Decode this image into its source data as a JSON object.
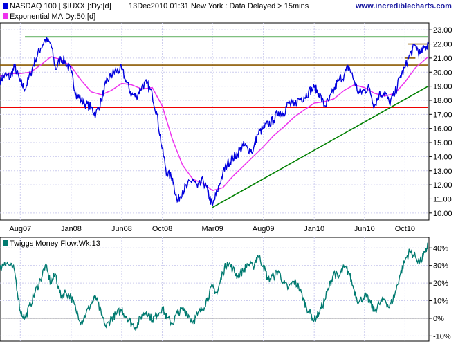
{
  "header": {
    "symbol_legend": "NASDAQ 100 [ $IUXX ]:Dy:[d]",
    "timestamp": "13Dec2010 01:31 New York : Data Delayed > 15mins",
    "ma_legend": "Exponential MA:Dy:50:[d]",
    "watermark": "www.incrediblecharts.com"
  },
  "indicator": {
    "legend": "Twiggs Money Flow:Wk:13"
  },
  "colors": {
    "price": "#0000dd",
    "ma": "#ee33ee",
    "resistance": "#008000",
    "support_mid": "#8b5a00",
    "support_low": "#ee0000",
    "trendline": "#008000",
    "money_flow": "#007a70",
    "grid": "#ccccee"
  },
  "chart_data": [
    {
      "type": "line",
      "title": "NASDAQ 100 [ $IUXX ]:Dy:[d]",
      "x_ticks": [
        "Aug07",
        "Jan08",
        "Jun08",
        "Oct08",
        "Mar09",
        "Aug09",
        "Jan10",
        "Jun10",
        "Oct10"
      ],
      "y_ticks": [
        "10.00",
        "11.00",
        "12.00",
        "13.00",
        "14.00",
        "15.00",
        "16.00",
        "17.00",
        "18.00",
        "19.00",
        "20.00",
        "21.00",
        "22.00",
        "23.00"
      ],
      "ylim": [
        9.5,
        23.5
      ],
      "grid": true,
      "series": [
        {
          "name": "NASDAQ 100 [ $IUXX ]:Dy:[d]",
          "values": [
            [
              "2007-06-01",
              19.4
            ],
            [
              "2007-06-15",
              19.8
            ],
            [
              "2007-07-01",
              19.6
            ],
            [
              "2007-07-15",
              20.4
            ],
            [
              "2007-08-01",
              19.3
            ],
            [
              "2007-08-15",
              18.8
            ],
            [
              "2007-09-01",
              19.9
            ],
            [
              "2007-09-15",
              20.9
            ],
            [
              "2007-10-01",
              21.7
            ],
            [
              "2007-10-15",
              22.3
            ],
            [
              "2007-11-01",
              22.0
            ],
            [
              "2007-11-15",
              20.2
            ],
            [
              "2007-12-01",
              21.0
            ],
            [
              "2007-12-15",
              20.7
            ],
            [
              "2008-01-01",
              20.0
            ],
            [
              "2008-01-15",
              18.5
            ],
            [
              "2008-02-01",
              18.0
            ],
            [
              "2008-02-15",
              17.7
            ],
            [
              "2008-03-01",
              17.5
            ],
            [
              "2008-03-15",
              17.0
            ],
            [
              "2008-04-01",
              18.0
            ],
            [
              "2008-04-15",
              19.2
            ],
            [
              "2008-05-01",
              19.8
            ],
            [
              "2008-05-15",
              20.1
            ],
            [
              "2008-06-01",
              20.2
            ],
            [
              "2008-06-15",
              19.3
            ],
            [
              "2008-07-01",
              18.4
            ],
            [
              "2008-07-15",
              18.3
            ],
            [
              "2008-08-01",
              19.0
            ],
            [
              "2008-08-15",
              19.2
            ],
            [
              "2008-09-01",
              18.4
            ],
            [
              "2008-09-15",
              17.0
            ],
            [
              "2008-10-01",
              14.5
            ],
            [
              "2008-10-15",
              12.8
            ],
            [
              "2008-11-01",
              12.5
            ],
            [
              "2008-11-15",
              10.8
            ],
            [
              "2008-12-01",
              11.6
            ],
            [
              "2008-12-15",
              11.9
            ],
            [
              "2009-01-01",
              12.4
            ],
            [
              "2009-01-15",
              11.8
            ],
            [
              "2009-02-01",
              12.3
            ],
            [
              "2009-02-15",
              11.5
            ],
            [
              "2009-03-01",
              10.5
            ],
            [
              "2009-03-15",
              11.5
            ],
            [
              "2009-04-01",
              12.8
            ],
            [
              "2009-04-15",
              13.5
            ],
            [
              "2009-05-01",
              13.9
            ],
            [
              "2009-05-15",
              14.2
            ],
            [
              "2009-06-01",
              14.8
            ],
            [
              "2009-06-15",
              14.6
            ],
            [
              "2009-07-01",
              14.4
            ],
            [
              "2009-07-15",
              15.6
            ],
            [
              "2009-08-01",
              16.0
            ],
            [
              "2009-08-15",
              16.3
            ],
            [
              "2009-09-01",
              16.6
            ],
            [
              "2009-09-15",
              17.2
            ],
            [
              "2009-10-01",
              17.1
            ],
            [
              "2009-10-15",
              17.8
            ],
            [
              "2009-11-01",
              17.6
            ],
            [
              "2009-11-15",
              18.1
            ],
            [
              "2009-12-01",
              18.2
            ],
            [
              "2009-12-15",
              18.6
            ],
            [
              "2010-01-01",
              18.9
            ],
            [
              "2010-01-15",
              18.5
            ],
            [
              "2010-02-01",
              17.6
            ],
            [
              "2010-02-15",
              18.0
            ],
            [
              "2010-03-01",
              18.7
            ],
            [
              "2010-03-15",
              19.4
            ],
            [
              "2010-04-01",
              19.8
            ],
            [
              "2010-04-15",
              20.4
            ],
            [
              "2010-05-01",
              19.4
            ],
            [
              "2010-05-15",
              18.5
            ],
            [
              "2010-06-01",
              18.7
            ],
            [
              "2010-06-15",
              18.9
            ],
            [
              "2010-07-01",
              17.6
            ],
            [
              "2010-07-15",
              18.4
            ],
            [
              "2010-08-01",
              18.6
            ],
            [
              "2010-08-15",
              17.8
            ],
            [
              "2010-09-01",
              18.5
            ],
            [
              "2010-09-15",
              19.6
            ],
            [
              "2010-10-01",
              20.3
            ],
            [
              "2010-10-15",
              21.2
            ],
            [
              "2010-11-01",
              21.9
            ],
            [
              "2010-11-15",
              21.3
            ],
            [
              "2010-12-01",
              21.8
            ],
            [
              "2010-12-10",
              22.0
            ]
          ]
        },
        {
          "name": "Exponential MA:Dy:50:[d]",
          "values": [
            [
              "2007-06-01",
              19.7
            ],
            [
              "2007-07-01",
              19.9
            ],
            [
              "2007-08-01",
              19.9
            ],
            [
              "2007-09-01",
              20.0
            ],
            [
              "2007-10-01",
              20.5
            ],
            [
              "2007-11-01",
              21.1
            ],
            [
              "2007-12-01",
              20.9
            ],
            [
              "2008-01-01",
              20.4
            ],
            [
              "2008-02-01",
              19.4
            ],
            [
              "2008-03-01",
              18.6
            ],
            [
              "2008-04-01",
              18.4
            ],
            [
              "2008-05-01",
              18.7
            ],
            [
              "2008-06-01",
              19.2
            ],
            [
              "2008-07-01",
              19.1
            ],
            [
              "2008-08-01",
              18.8
            ],
            [
              "2008-09-01",
              18.9
            ],
            [
              "2008-10-01",
              17.6
            ],
            [
              "2008-11-01",
              15.2
            ],
            [
              "2008-12-01",
              13.4
            ],
            [
              "2009-01-01",
              12.4
            ],
            [
              "2009-02-01",
              12.1
            ],
            [
              "2009-03-01",
              11.6
            ],
            [
              "2009-04-01",
              11.8
            ],
            [
              "2009-05-01",
              12.6
            ],
            [
              "2009-06-01",
              13.3
            ],
            [
              "2009-07-01",
              14.0
            ],
            [
              "2009-08-01",
              14.7
            ],
            [
              "2009-09-01",
              15.5
            ],
            [
              "2009-10-01",
              16.1
            ],
            [
              "2009-11-01",
              16.8
            ],
            [
              "2009-12-01",
              17.3
            ],
            [
              "2010-01-01",
              17.8
            ],
            [
              "2010-02-01",
              17.9
            ],
            [
              "2010-03-01",
              18.1
            ],
            [
              "2010-04-01",
              18.7
            ],
            [
              "2010-05-01",
              19.1
            ],
            [
              "2010-06-01",
              18.9
            ],
            [
              "2010-07-01",
              18.5
            ],
            [
              "2010-08-01",
              18.3
            ],
            [
              "2010-09-01",
              18.5
            ],
            [
              "2010-10-01",
              19.3
            ],
            [
              "2010-11-01",
              20.3
            ],
            [
              "2010-12-10",
              21.1
            ]
          ]
        }
      ],
      "horizontal_lines": [
        {
          "y": 22.5,
          "from": "2007-08-15",
          "to": "2010-12-10",
          "color": "#008000"
        },
        {
          "y": 20.5,
          "from": "2007-06-01",
          "to": "2010-12-10",
          "color": "#8b5a00"
        },
        {
          "y": 17.5,
          "from": "2007-06-01",
          "to": "2010-12-10",
          "color": "#ee0000"
        },
        {
          "y": 22.0,
          "from": "2010-10-10",
          "to": "2010-12-10",
          "color": "#8b5a00"
        },
        {
          "y": 21.0,
          "from": "2010-10-01",
          "to": "2010-11-01",
          "color": "#8b5a00"
        }
      ],
      "trendline": {
        "from": [
          "2009-03-01",
          10.4
        ],
        "to": [
          "2010-12-10",
          19.0
        ],
        "color": "#008000"
      }
    },
    {
      "type": "line",
      "title": "Twiggs Money Flow:Wk:13",
      "x_ticks": [
        "Aug07",
        "Jan08",
        "Jun08",
        "Oct08",
        "Mar09",
        "Aug09",
        "Jan10",
        "Jun10",
        "Oct10"
      ],
      "y_ticks": [
        "-10%",
        "0%",
        "10%",
        "20%",
        "30%",
        "40%"
      ],
      "ylim": [
        -0.13,
        0.46
      ],
      "grid": true,
      "series": [
        {
          "name": "Twiggs Money Flow:Wk:13",
          "values": [
            [
              "2007-06-01",
              0.28
            ],
            [
              "2007-06-15",
              0.32
            ],
            [
              "2007-07-01",
              0.3
            ],
            [
              "2007-07-15",
              0.27
            ],
            [
              "2007-08-01",
              0.04
            ],
            [
              "2007-08-15",
              0.0
            ],
            [
              "2007-09-01",
              0.08
            ],
            [
              "2007-09-15",
              0.15
            ],
            [
              "2007-10-01",
              0.22
            ],
            [
              "2007-10-15",
              0.3
            ],
            [
              "2007-11-01",
              0.2
            ],
            [
              "2007-11-15",
              0.25
            ],
            [
              "2007-12-01",
              0.12
            ],
            [
              "2007-12-15",
              0.15
            ],
            [
              "2008-01-01",
              0.12
            ],
            [
              "2008-01-15",
              0.05
            ],
            [
              "2008-02-01",
              -0.02
            ],
            [
              "2008-02-15",
              0.03
            ],
            [
              "2008-03-01",
              0.08
            ],
            [
              "2008-03-15",
              0.12
            ],
            [
              "2008-04-01",
              0.02
            ],
            [
              "2008-04-15",
              -0.05
            ],
            [
              "2008-05-01",
              0.0
            ],
            [
              "2008-05-15",
              0.02
            ],
            [
              "2008-06-01",
              0.05
            ],
            [
              "2008-06-15",
              0.01
            ],
            [
              "2008-07-01",
              -0.03
            ],
            [
              "2008-07-15",
              -0.05
            ],
            [
              "2008-08-01",
              0.02
            ],
            [
              "2008-08-15",
              0.04
            ],
            [
              "2008-09-01",
              -0.01
            ],
            [
              "2008-09-15",
              0.02
            ],
            [
              "2008-10-01",
              0.06
            ],
            [
              "2008-10-15",
              0.0
            ],
            [
              "2008-11-01",
              -0.03
            ],
            [
              "2008-11-15",
              0.03
            ],
            [
              "2008-12-01",
              0.05
            ],
            [
              "2008-12-15",
              0.03
            ],
            [
              "2009-01-01",
              -0.02
            ],
            [
              "2009-01-15",
              0.02
            ],
            [
              "2009-02-01",
              0.06
            ],
            [
              "2009-02-15",
              0.12
            ],
            [
              "2009-03-01",
              0.18
            ],
            [
              "2009-03-15",
              0.14
            ],
            [
              "2009-04-01",
              0.26
            ],
            [
              "2009-04-15",
              0.32
            ],
            [
              "2009-05-01",
              0.28
            ],
            [
              "2009-05-15",
              0.24
            ],
            [
              "2009-06-01",
              0.27
            ],
            [
              "2009-06-15",
              0.31
            ],
            [
              "2009-07-01",
              0.29
            ],
            [
              "2009-07-15",
              0.36
            ],
            [
              "2009-08-01",
              0.3
            ],
            [
              "2009-08-15",
              0.22
            ],
            [
              "2009-09-01",
              0.24
            ],
            [
              "2009-09-15",
              0.27
            ],
            [
              "2009-10-01",
              0.2
            ],
            [
              "2009-10-15",
              0.17
            ],
            [
              "2009-11-01",
              0.21
            ],
            [
              "2009-11-15",
              0.18
            ],
            [
              "2009-12-01",
              0.1
            ],
            [
              "2009-12-15",
              0.04
            ],
            [
              "2010-01-01",
              -0.01
            ],
            [
              "2010-01-15",
              0.03
            ],
            [
              "2010-02-01",
              0.1
            ],
            [
              "2010-02-15",
              0.18
            ],
            [
              "2010-03-01",
              0.26
            ],
            [
              "2010-03-15",
              0.23
            ],
            [
              "2010-04-01",
              0.29
            ],
            [
              "2010-04-15",
              0.26
            ],
            [
              "2010-05-01",
              0.16
            ],
            [
              "2010-05-15",
              0.09
            ],
            [
              "2010-06-01",
              0.13
            ],
            [
              "2010-06-15",
              0.1
            ],
            [
              "2010-07-01",
              0.04
            ],
            [
              "2010-07-15",
              0.08
            ],
            [
              "2010-08-01",
              0.11
            ],
            [
              "2010-08-15",
              0.06
            ],
            [
              "2010-09-01",
              0.14
            ],
            [
              "2010-09-15",
              0.24
            ],
            [
              "2010-10-01",
              0.33
            ],
            [
              "2010-10-15",
              0.38
            ],
            [
              "2010-11-01",
              0.35
            ],
            [
              "2010-11-15",
              0.32
            ],
            [
              "2010-12-01",
              0.37
            ],
            [
              "2010-12-10",
              0.43
            ]
          ]
        }
      ],
      "zero_line": true
    }
  ]
}
